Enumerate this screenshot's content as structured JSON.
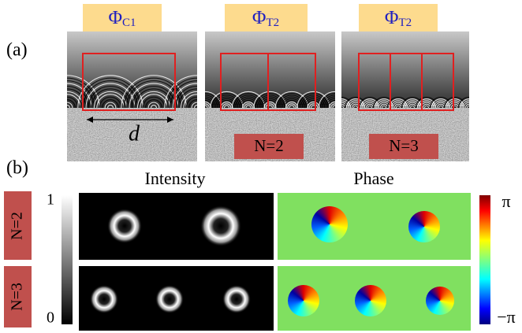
{
  "panel_a": {
    "label": "(a)",
    "phases": [
      {
        "symbol": "Φ",
        "subscript": "C1"
      },
      {
        "symbol": "Φ",
        "subscript": "T2"
      },
      {
        "symbol": "Φ",
        "subscript": "T2"
      }
    ],
    "period_label": "d",
    "tags": [
      "N=2",
      "N=3"
    ]
  },
  "panel_b": {
    "label": "(b)",
    "column_titles": [
      "Intensity",
      "Phase"
    ],
    "row_labels": [
      "N=2",
      "N=3"
    ],
    "intensity_scale": [
      1,
      0
    ],
    "phase_scale": [
      "π",
      "−π"
    ]
  }
}
